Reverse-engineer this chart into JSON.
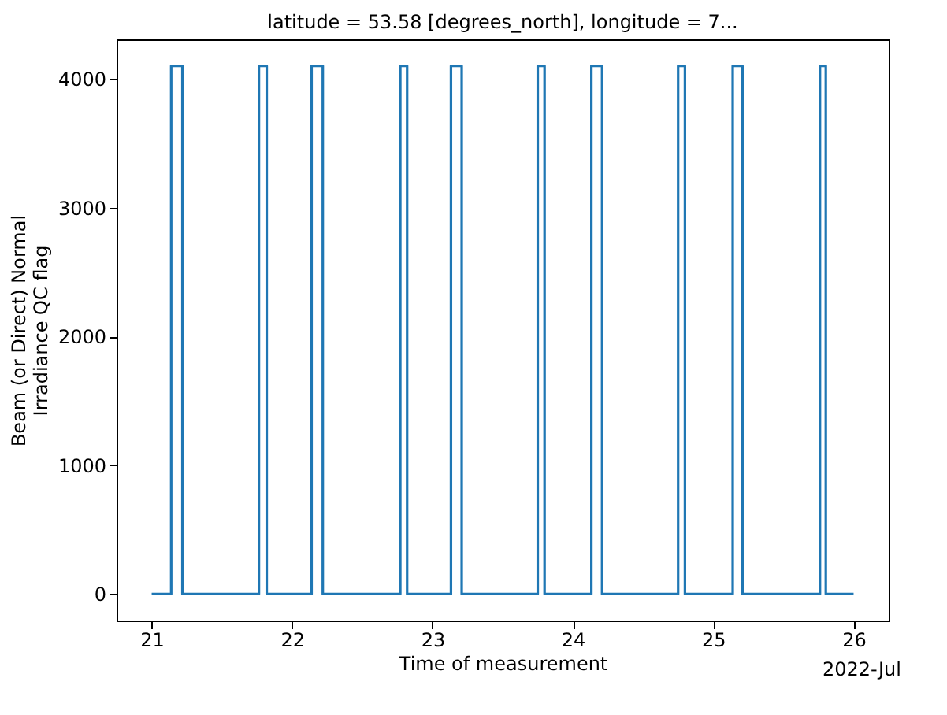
{
  "chart_data": {
    "type": "step",
    "title": "latitude = 53.58 [degrees_north], longitude = 7...",
    "xlabel": "Time of measurement",
    "ylabel": "Beam (or Direct) Normal\nIrradiance QC flag",
    "x": [
      "2022-07-21T00:00",
      "2022-07-21T03:20",
      "2022-07-21T05:15",
      "2022-07-21T18:20",
      "2022-07-21T19:40",
      "2022-07-22T03:20",
      "2022-07-22T05:15",
      "2022-07-22T18:30",
      "2022-07-22T19:40",
      "2022-07-23T03:10",
      "2022-07-23T05:00",
      "2022-07-23T18:00",
      "2022-07-23T19:10",
      "2022-07-24T03:10",
      "2022-07-24T05:00",
      "2022-07-24T18:00",
      "2022-07-24T19:10",
      "2022-07-25T03:20",
      "2022-07-25T05:00",
      "2022-07-25T18:15",
      "2022-07-25T19:15",
      "2022-07-26T00:00"
    ],
    "series": [
      {
        "color": "#1f77b4",
        "values": [
          0,
          4100,
          0,
          4100,
          0,
          4100,
          0,
          4100,
          0,
          4100,
          0,
          4100,
          0,
          4100,
          0,
          4100,
          0,
          4100,
          0,
          4100,
          0,
          0
        ]
      }
    ],
    "xlim": [
      "2022-07-20T18:00",
      "2022-07-26T06:00"
    ],
    "xticks": [
      {
        "value": "2022-07-21",
        "label": "21"
      },
      {
        "value": "2022-07-22",
        "label": "22"
      },
      {
        "value": "2022-07-23",
        "label": "23"
      },
      {
        "value": "2022-07-24",
        "label": "24"
      },
      {
        "value": "2022-07-25",
        "label": "25"
      },
      {
        "value": "2022-07-26",
        "label": "26"
      }
    ],
    "ylim": [
      -205,
      4305
    ],
    "yticks": [
      0,
      1000,
      2000,
      3000,
      4000
    ],
    "annotations": [
      "2022-Jul"
    ],
    "grid": false,
    "line_style": "solid",
    "marker": "none"
  }
}
